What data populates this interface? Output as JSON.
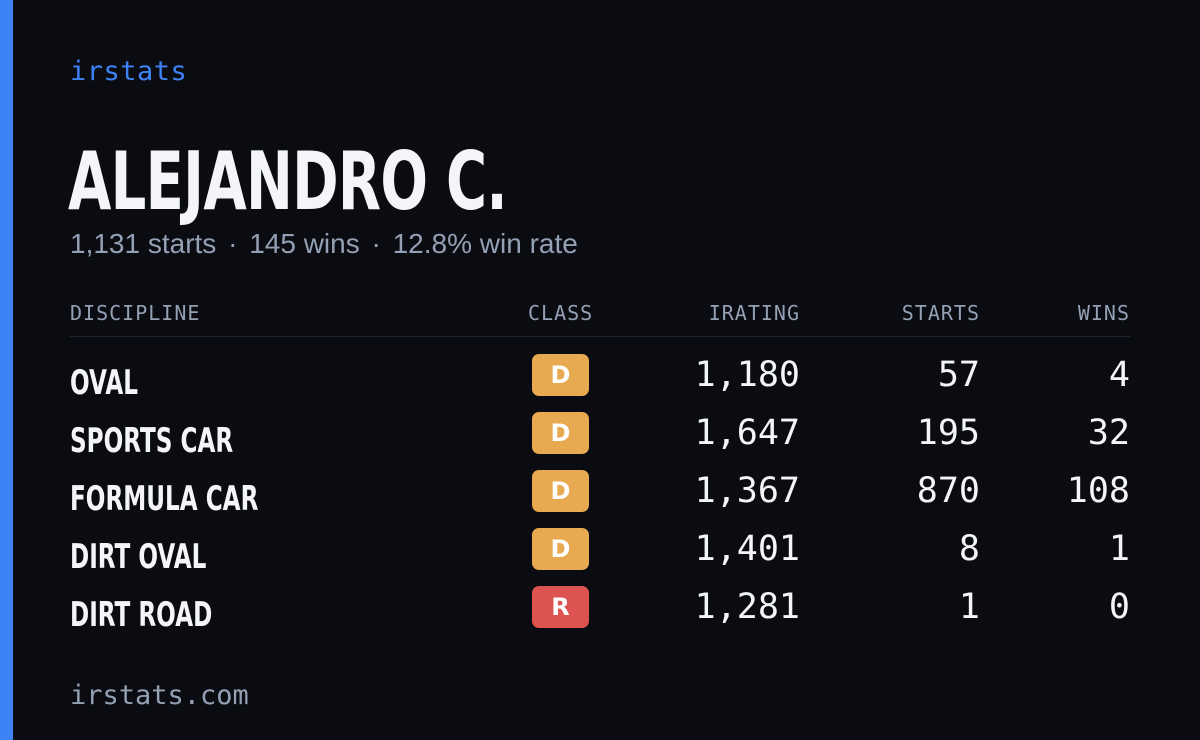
{
  "brand": "irstats",
  "profile": {
    "name": "ALEJANDRO C.",
    "starts_text": "1,131 starts",
    "wins_text": "145 wins",
    "winrate_text": "12.8% win rate",
    "separator": "·"
  },
  "table": {
    "headers": {
      "discipline": "DISCIPLINE",
      "class": "CLASS",
      "irating": "IRATING",
      "starts": "STARTS",
      "wins": "WINS"
    },
    "rows": [
      {
        "discipline": "OVAL",
        "class": "D",
        "irating": "1,180",
        "starts": "57",
        "wins": "4"
      },
      {
        "discipline": "SPORTS CAR",
        "class": "D",
        "irating": "1,647",
        "starts": "195",
        "wins": "32"
      },
      {
        "discipline": "FORMULA CAR",
        "class": "D",
        "irating": "1,367",
        "starts": "870",
        "wins": "108"
      },
      {
        "discipline": "DIRT OVAL",
        "class": "D",
        "irating": "1,401",
        "starts": "8",
        "wins": "1"
      },
      {
        "discipline": "DIRT ROAD",
        "class": "R",
        "irating": "1,281",
        "starts": "1",
        "wins": "0"
      }
    ]
  },
  "colors": {
    "accent": "#3d82f6",
    "class_d": "#e8aa50",
    "class_r": "#dc5350"
  },
  "footer": "irstats.com"
}
